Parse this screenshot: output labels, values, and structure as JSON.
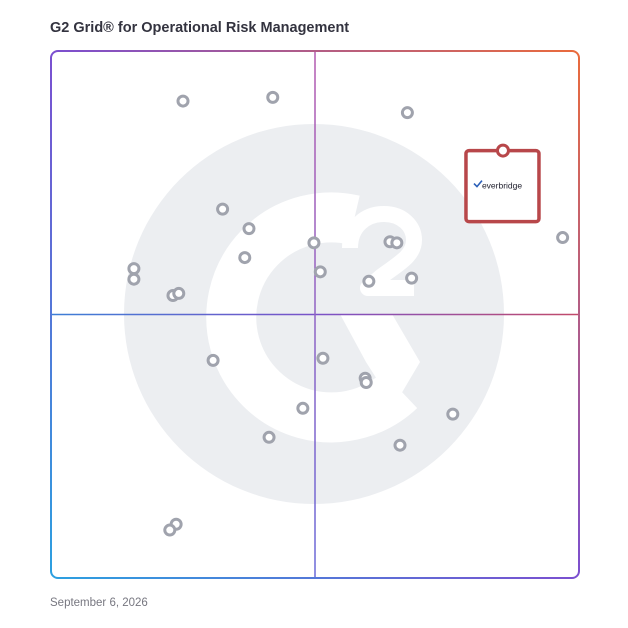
{
  "page": {
    "title": "G2 Grid® for Operational Risk Management",
    "date": "September 6, 2026"
  },
  "colors": {
    "frame_top_left": "#7b4fd0",
    "frame_top_right": "#ea6b3c",
    "frame_bottom_left": "#2ca0e0",
    "frame_bottom_right": "#8a3fb5",
    "dot": "#a0a3ad",
    "highlight": "#b8474a",
    "watermark": "#eceef1"
  },
  "chart_data": {
    "type": "scatter",
    "title": "",
    "xlabel": "",
    "ylabel": "",
    "xlim": [
      0,
      100
    ],
    "ylim": [
      0,
      100
    ],
    "grid": false,
    "watermark": "g2-logo",
    "points": [
      {
        "x": 25.0,
        "y": 90.5
      },
      {
        "x": 42.0,
        "y": 91.2
      },
      {
        "x": 67.5,
        "y": 88.3
      },
      {
        "x": 32.5,
        "y": 70.0
      },
      {
        "x": 37.5,
        "y": 66.3
      },
      {
        "x": 36.7,
        "y": 60.8
      },
      {
        "x": 49.8,
        "y": 63.6
      },
      {
        "x": 64.2,
        "y": 63.8
      },
      {
        "x": 65.5,
        "y": 63.6
      },
      {
        "x": 96.9,
        "y": 64.6
      },
      {
        "x": 51.0,
        "y": 58.1
      },
      {
        "x": 60.2,
        "y": 56.3
      },
      {
        "x": 68.3,
        "y": 56.9
      },
      {
        "x": 15.7,
        "y": 58.7
      },
      {
        "x": 15.7,
        "y": 56.7
      },
      {
        "x": 23.1,
        "y": 53.6
      },
      {
        "x": 24.2,
        "y": 54.0
      },
      {
        "x": 30.7,
        "y": 41.3
      },
      {
        "x": 51.5,
        "y": 41.7
      },
      {
        "x": 59.5,
        "y": 37.9
      },
      {
        "x": 59.7,
        "y": 37.1
      },
      {
        "x": 47.7,
        "y": 32.2
      },
      {
        "x": 76.1,
        "y": 31.1
      },
      {
        "x": 41.3,
        "y": 26.7
      },
      {
        "x": 66.1,
        "y": 25.2
      },
      {
        "x": 23.7,
        "y": 10.2
      },
      {
        "x": 22.5,
        "y": 9.1
      }
    ],
    "highlight": {
      "label": "everbridge",
      "x": 85.6,
      "y": 81.1
    }
  }
}
